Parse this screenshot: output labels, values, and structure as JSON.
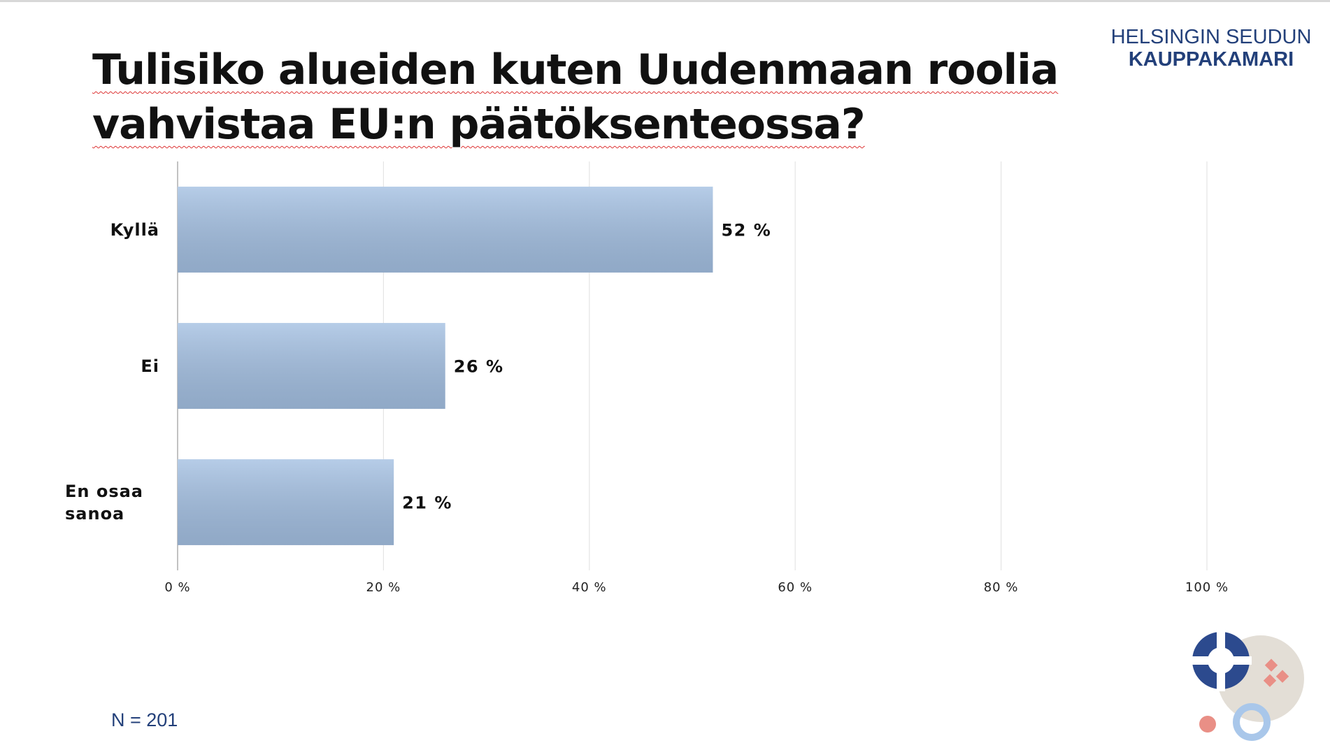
{
  "chart_data": {
    "type": "bar",
    "orientation": "horizontal",
    "title": [
      "Tulisiko alueiden kuten Uudenmaan roolia",
      "vahvistaa EU:n päätöksenteossa?"
    ],
    "brand": [
      "HELSINGIN SEUDUN",
      "KAUPPAKAMARI"
    ],
    "note": "N = 201",
    "categories": [
      "Kyllä",
      "Ei",
      "En osaa sanoa"
    ],
    "values": [
      52,
      26,
      21
    ],
    "value_labels": [
      "52 %",
      "26 %",
      "21 %"
    ],
    "color": "#a4c0e2",
    "xlim": [
      0,
      100
    ],
    "xticks": [
      {
        "value": 0,
        "label": "0 %"
      },
      {
        "value": 20,
        "label": "20 %"
      },
      {
        "value": 40,
        "label": "40 %"
      },
      {
        "value": 60,
        "label": "60 %"
      },
      {
        "value": 80,
        "label": "80 %"
      },
      {
        "value": 100,
        "label": "100 %"
      }
    ],
    "grid": true
  }
}
